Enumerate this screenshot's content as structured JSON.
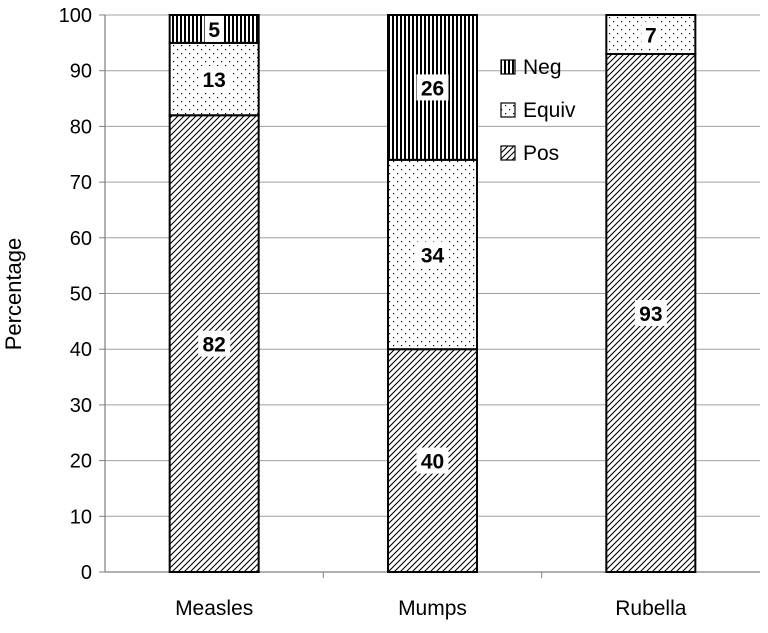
{
  "chart_data": {
    "type": "bar",
    "stacked": true,
    "categories": [
      "Measles",
      "Mumps",
      "Rubella"
    ],
    "series": [
      {
        "name": "Pos",
        "values": [
          82,
          40,
          93
        ],
        "pattern": "diagonal-hatch"
      },
      {
        "name": "Equiv",
        "values": [
          13,
          34,
          7
        ],
        "pattern": "dots"
      },
      {
        "name": "Neg",
        "values": [
          5,
          26,
          0
        ],
        "pattern": "vertical-lines"
      }
    ],
    "data_labels": [
      [
        "82",
        "13",
        "5"
      ],
      [
        "40",
        "34",
        "26"
      ],
      [
        "93",
        "7",
        ""
      ]
    ],
    "title": "",
    "xlabel": "",
    "ylabel": "Percentage",
    "ylim": [
      0,
      100
    ],
    "yticks": [
      0,
      10,
      20,
      30,
      40,
      50,
      60,
      70,
      80,
      90,
      100
    ],
    "grid": true,
    "legend": {
      "placement": "top-right-inside",
      "entries": [
        "Neg",
        "Equiv",
        "Pos"
      ]
    },
    "colors": {
      "fill": "#ffffff",
      "pattern_ink": "#000000",
      "grid": "#a0a0a0",
      "axis": "#808080"
    }
  }
}
